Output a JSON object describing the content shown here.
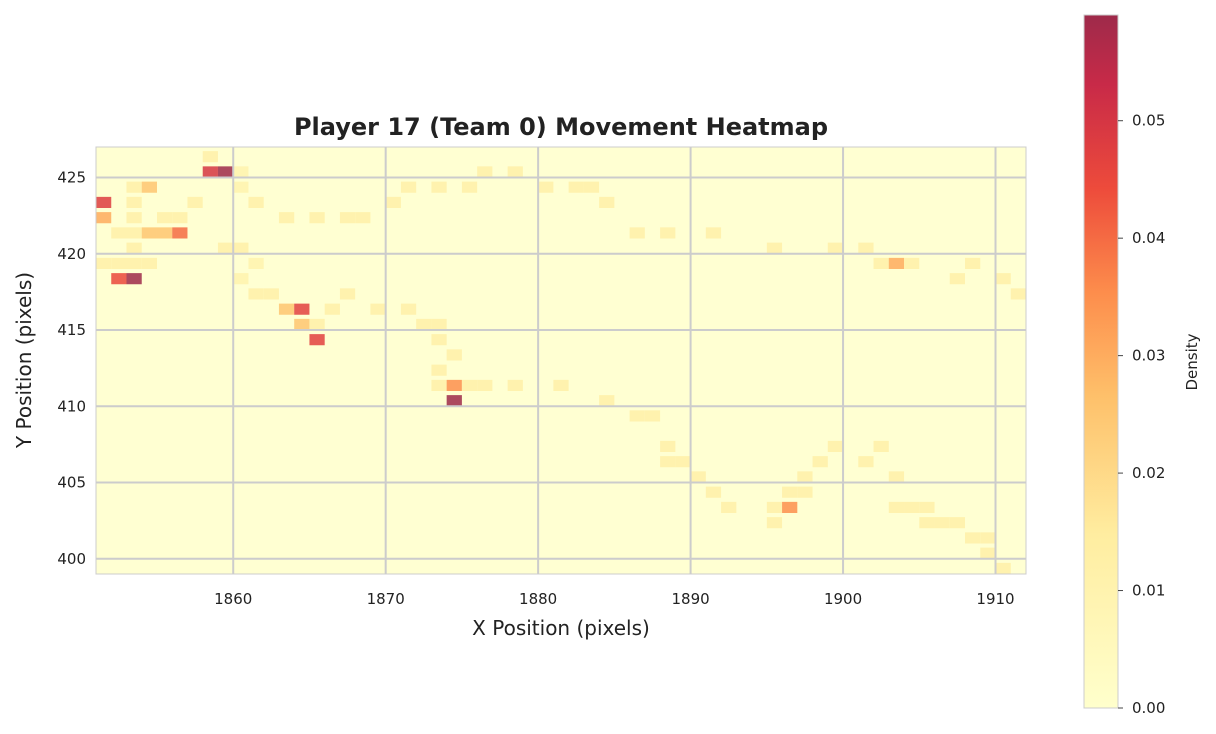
{
  "chart_data": {
    "type": "heatmap",
    "title": "Player 17 (Team 0) Movement Heatmap",
    "xlabel": "X Position (pixels)",
    "ylabel": "Y Position (pixels)",
    "xlim": [
      1851,
      1912
    ],
    "ylim": [
      399,
      427
    ],
    "x_ticks": [
      1860,
      1870,
      1880,
      1890,
      1900,
      1910
    ],
    "y_ticks": [
      400,
      405,
      410,
      415,
      420,
      425
    ],
    "bin_width": 1,
    "bin_height": 1,
    "colorbar": {
      "label": "Density",
      "min": 0,
      "max": 0.059,
      "ticks": [
        "0.00",
        "0.01",
        "0.02",
        "0.03",
        "0.04",
        "0.05"
      ]
    },
    "grid": true,
    "cells": [
      [
        1858,
        426.5,
        0.012
      ],
      [
        1858,
        425.5,
        0.05
      ],
      [
        1859,
        425.5,
        0.059
      ],
      [
        1860,
        425.5,
        0.01
      ],
      [
        1876,
        425.5,
        0.012
      ],
      [
        1878,
        425.5,
        0.012
      ],
      [
        1853,
        424.5,
        0.012
      ],
      [
        1854,
        424.5,
        0.025
      ],
      [
        1860,
        424.5,
        0.01
      ],
      [
        1871,
        424.5,
        0.012
      ],
      [
        1873,
        424.5,
        0.012
      ],
      [
        1875,
        424.5,
        0.012
      ],
      [
        1880,
        424.5,
        0.012
      ],
      [
        1882,
        424.5,
        0.012
      ],
      [
        1883,
        424.5,
        0.012
      ],
      [
        1851,
        423.5,
        0.048
      ],
      [
        1853,
        423.5,
        0.012
      ],
      [
        1857,
        423.5,
        0.012
      ],
      [
        1861,
        423.5,
        0.012
      ],
      [
        1870,
        423.5,
        0.012
      ],
      [
        1884,
        423.5,
        0.012
      ],
      [
        1851,
        422.5,
        0.03
      ],
      [
        1853,
        422.5,
        0.012
      ],
      [
        1855,
        422.5,
        0.012
      ],
      [
        1856,
        422.5,
        0.012
      ],
      [
        1863,
        422.5,
        0.012
      ],
      [
        1865,
        422.5,
        0.012
      ],
      [
        1867,
        422.5,
        0.012
      ],
      [
        1868,
        422.5,
        0.012
      ],
      [
        1852,
        421.5,
        0.012
      ],
      [
        1853,
        421.5,
        0.012
      ],
      [
        1854,
        421.5,
        0.025
      ],
      [
        1855,
        421.5,
        0.025
      ],
      [
        1856,
        421.5,
        0.04
      ],
      [
        1886,
        421.5,
        0.012
      ],
      [
        1888,
        421.5,
        0.012
      ],
      [
        1891,
        421.5,
        0.012
      ],
      [
        1853,
        420.5,
        0.012
      ],
      [
        1859,
        420.5,
        0.012
      ],
      [
        1860,
        420.5,
        0.012
      ],
      [
        1895,
        420.5,
        0.012
      ],
      [
        1899,
        420.5,
        0.012
      ],
      [
        1901,
        420.5,
        0.012
      ],
      [
        1851,
        419.5,
        0.012
      ],
      [
        1852,
        419.5,
        0.012
      ],
      [
        1853,
        419.5,
        0.012
      ],
      [
        1854,
        419.5,
        0.012
      ],
      [
        1861,
        419.5,
        0.01
      ],
      [
        1902,
        419.5,
        0.012
      ],
      [
        1903,
        419.5,
        0.03
      ],
      [
        1904,
        419.5,
        0.012
      ],
      [
        1908,
        419.5,
        0.012
      ],
      [
        1852,
        418.5,
        0.045
      ],
      [
        1853,
        418.5,
        0.059
      ],
      [
        1860,
        418.5,
        0.01
      ],
      [
        1907,
        418.5,
        0.012
      ],
      [
        1910,
        418.5,
        0.012
      ],
      [
        1861,
        417.5,
        0.012
      ],
      [
        1862,
        417.5,
        0.012
      ],
      [
        1867,
        417.5,
        0.012
      ],
      [
        1911,
        417.5,
        0.012
      ],
      [
        1863,
        416.5,
        0.025
      ],
      [
        1864,
        416.5,
        0.047
      ],
      [
        1866,
        416.5,
        0.012
      ],
      [
        1869,
        416.5,
        0.012
      ],
      [
        1871,
        416.5,
        0.012
      ],
      [
        1864,
        415.5,
        0.025
      ],
      [
        1865,
        415.5,
        0.012
      ],
      [
        1872,
        415.5,
        0.012
      ],
      [
        1873,
        415.5,
        0.012
      ],
      [
        1865,
        414.5,
        0.047
      ],
      [
        1873,
        414.5,
        0.012
      ],
      [
        1874,
        413.5,
        0.012
      ],
      [
        1873,
        412.5,
        0.012
      ],
      [
        1873,
        411.5,
        0.012
      ],
      [
        1874,
        411.5,
        0.035
      ],
      [
        1875,
        411.5,
        0.012
      ],
      [
        1876,
        411.5,
        0.012
      ],
      [
        1878,
        411.5,
        0.012
      ],
      [
        1881,
        411.5,
        0.012
      ],
      [
        1874,
        410.5,
        0.059
      ],
      [
        1884,
        410.5,
        0.012
      ],
      [
        1886,
        409.5,
        0.012
      ],
      [
        1887,
        409.5,
        0.012
      ],
      [
        1888,
        407.5,
        0.012
      ],
      [
        1899,
        407.5,
        0.012
      ],
      [
        1902,
        407.5,
        0.012
      ],
      [
        1888,
        406.5,
        0.012
      ],
      [
        1889,
        406.5,
        0.012
      ],
      [
        1898,
        406.5,
        0.012
      ],
      [
        1901,
        406.5,
        0.012
      ],
      [
        1890,
        405.5,
        0.012
      ],
      [
        1897,
        405.5,
        0.012
      ],
      [
        1903,
        405.5,
        0.012
      ],
      [
        1891,
        404.5,
        0.012
      ],
      [
        1896,
        404.5,
        0.012
      ],
      [
        1897,
        404.5,
        0.012
      ],
      [
        1892,
        403.5,
        0.012
      ],
      [
        1895,
        403.5,
        0.012
      ],
      [
        1896,
        403.5,
        0.035
      ],
      [
        1903,
        403.5,
        0.012
      ],
      [
        1904,
        403.5,
        0.012
      ],
      [
        1905,
        403.5,
        0.012
      ],
      [
        1895,
        402.5,
        0.012
      ],
      [
        1905,
        402.5,
        0.012
      ],
      [
        1906,
        402.5,
        0.012
      ],
      [
        1907,
        402.5,
        0.012
      ],
      [
        1908,
        401.5,
        0.012
      ],
      [
        1909,
        401.5,
        0.012
      ],
      [
        1909,
        400.5,
        0.012
      ],
      [
        1910,
        399.5,
        0.012
      ],
      [
        1911,
        398.5,
        0.012
      ]
    ]
  }
}
